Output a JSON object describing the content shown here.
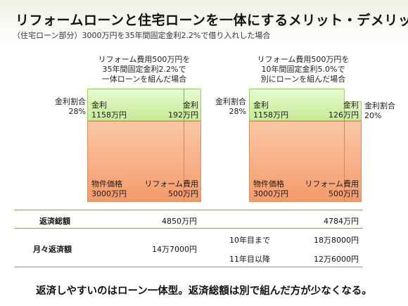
{
  "title": "リフォームローンと住宅ローンを一体にするメリット・デメリット",
  "subtitle": "（住宅ローン部分）3000万円を35年間固定金利2.2%で借り入れした場合",
  "left": {
    "caption": [
      "リフォーム費用500万円を",
      "35年間固定金利2.2%で",
      "一体ローンを組んだ場合"
    ],
    "side_label": "金利割合",
    "side_value": "28%",
    "interest_label": "金利",
    "interest_value": "1158万円",
    "reform_interest_label": "金利",
    "reform_interest_value": "192万円",
    "property_label": "物件価格",
    "property_value": "3000万円",
    "reform_label": "リフォーム費用",
    "reform_value": "500万円"
  },
  "right": {
    "caption": [
      "リフォーム費用500万円を",
      "10年間固定金利5.0%で",
      "別にローンを組んだ場合"
    ],
    "side_label": "金利割合",
    "side_value": "28%",
    "extra_side_label": "金利割合",
    "extra_side_value": "20%",
    "interest_label": "金利",
    "interest_value": "1158万円",
    "reform_interest_label": "金利",
    "reform_interest_value": "126万円",
    "property_label": "物件価格",
    "property_value": "3000万円",
    "reform_label": "リフォーム費用",
    "reform_value": "500万円"
  },
  "table": {
    "total_label": "返済総額",
    "total_left": "4850万円",
    "total_right": "4784万円",
    "monthly_label": "月々返済額",
    "monthly_left": "14万7000円",
    "period1_label": "10年目まで",
    "period1_value": "18万8000円",
    "period2_label": "11年目以降",
    "period2_value": "12万6000円"
  },
  "footer": "返済しやすいのはローン一体型。返済総額は別で組んだ方が少なくなる。"
}
